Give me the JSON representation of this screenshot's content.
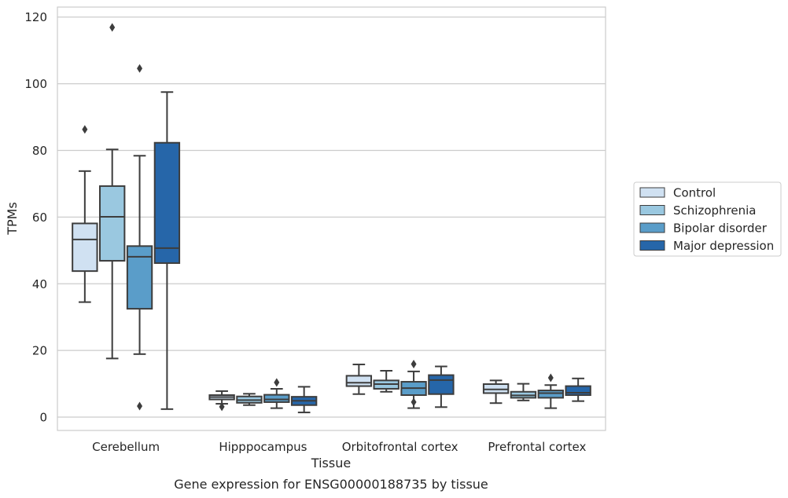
{
  "chart_data": {
    "type": "boxplot",
    "xlabel": "Tissue",
    "ylabel": "TPMs",
    "ylim": [
      -4,
      123
    ],
    "yticks": [
      0,
      20,
      40,
      60,
      80,
      100,
      120
    ],
    "grid": "horizontal",
    "legend_position": "right",
    "categories": [
      "Cerebellum",
      "Hipppocampus",
      "Orbitofrontal cortex",
      "Prefrontal cortex"
    ],
    "series": [
      {
        "name": "Control",
        "color": "#d0e1f2",
        "boxes": [
          {
            "whislo": 34.5,
            "q1": 43.8,
            "med": 53.3,
            "q3": 58.1,
            "whishi": 73.8,
            "fliers": [
              86.3
            ]
          },
          {
            "whislo": 4.0,
            "q1": 5.3,
            "med": 6.0,
            "q3": 6.6,
            "whishi": 7.8,
            "fliers": [
              3.1
            ]
          },
          {
            "whislo": 6.9,
            "q1": 9.3,
            "med": 10.3,
            "q3": 12.4,
            "whishi": 15.8,
            "fliers": []
          },
          {
            "whislo": 4.2,
            "q1": 7.2,
            "med": 8.3,
            "q3": 9.9,
            "whishi": 11.0,
            "fliers": []
          }
        ]
      },
      {
        "name": "Schizophrenia",
        "color": "#9ac8e0",
        "boxes": [
          {
            "whislo": 17.6,
            "q1": 46.9,
            "med": 60.1,
            "q3": 69.3,
            "whishi": 80.3,
            "fliers": [
              116.9
            ]
          },
          {
            "whislo": 3.6,
            "q1": 4.3,
            "med": 5.1,
            "q3": 6.2,
            "whishi": 7.0,
            "fliers": []
          },
          {
            "whislo": 7.6,
            "q1": 8.5,
            "med": 9.9,
            "q3": 11.0,
            "whishi": 13.9,
            "fliers": []
          },
          {
            "whislo": 5.0,
            "q1": 5.8,
            "med": 6.5,
            "q3": 7.6,
            "whishi": 10.0,
            "fliers": []
          }
        ]
      },
      {
        "name": "Bipolar disorder",
        "color": "#5a9dc9",
        "boxes": [
          {
            "whislo": 18.9,
            "q1": 32.5,
            "med": 48.1,
            "q3": 51.3,
            "whishi": 78.4,
            "fliers": [
              104.6,
              3.3
            ]
          },
          {
            "whislo": 2.7,
            "q1": 4.5,
            "med": 5.3,
            "q3": 6.7,
            "whishi": 8.5,
            "fliers": [
              10.4
            ]
          },
          {
            "whislo": 2.7,
            "q1": 6.6,
            "med": 8.7,
            "q3": 10.6,
            "whishi": 13.7,
            "fliers": [
              15.9,
              4.5
            ]
          },
          {
            "whislo": 2.7,
            "q1": 5.8,
            "med": 7.2,
            "q3": 8.0,
            "whishi": 9.6,
            "fliers": [
              11.8
            ]
          }
        ]
      },
      {
        "name": "Major depression",
        "color": "#2666a9",
        "boxes": [
          {
            "whislo": 2.4,
            "q1": 46.2,
            "med": 50.7,
            "q3": 82.3,
            "whishi": 97.5,
            "fliers": []
          },
          {
            "whislo": 1.4,
            "q1": 3.6,
            "med": 4.9,
            "q3": 6.1,
            "whishi": 9.1,
            "fliers": []
          },
          {
            "whislo": 3.0,
            "q1": 6.9,
            "med": 11.1,
            "q3": 12.6,
            "whishi": 15.2,
            "fliers": []
          },
          {
            "whislo": 4.8,
            "q1": 6.6,
            "med": 7.3,
            "q3": 9.3,
            "whishi": 11.6,
            "fliers": []
          }
        ]
      }
    ],
    "caption": "Gene expression for ENSG00000188735 by tissue"
  }
}
